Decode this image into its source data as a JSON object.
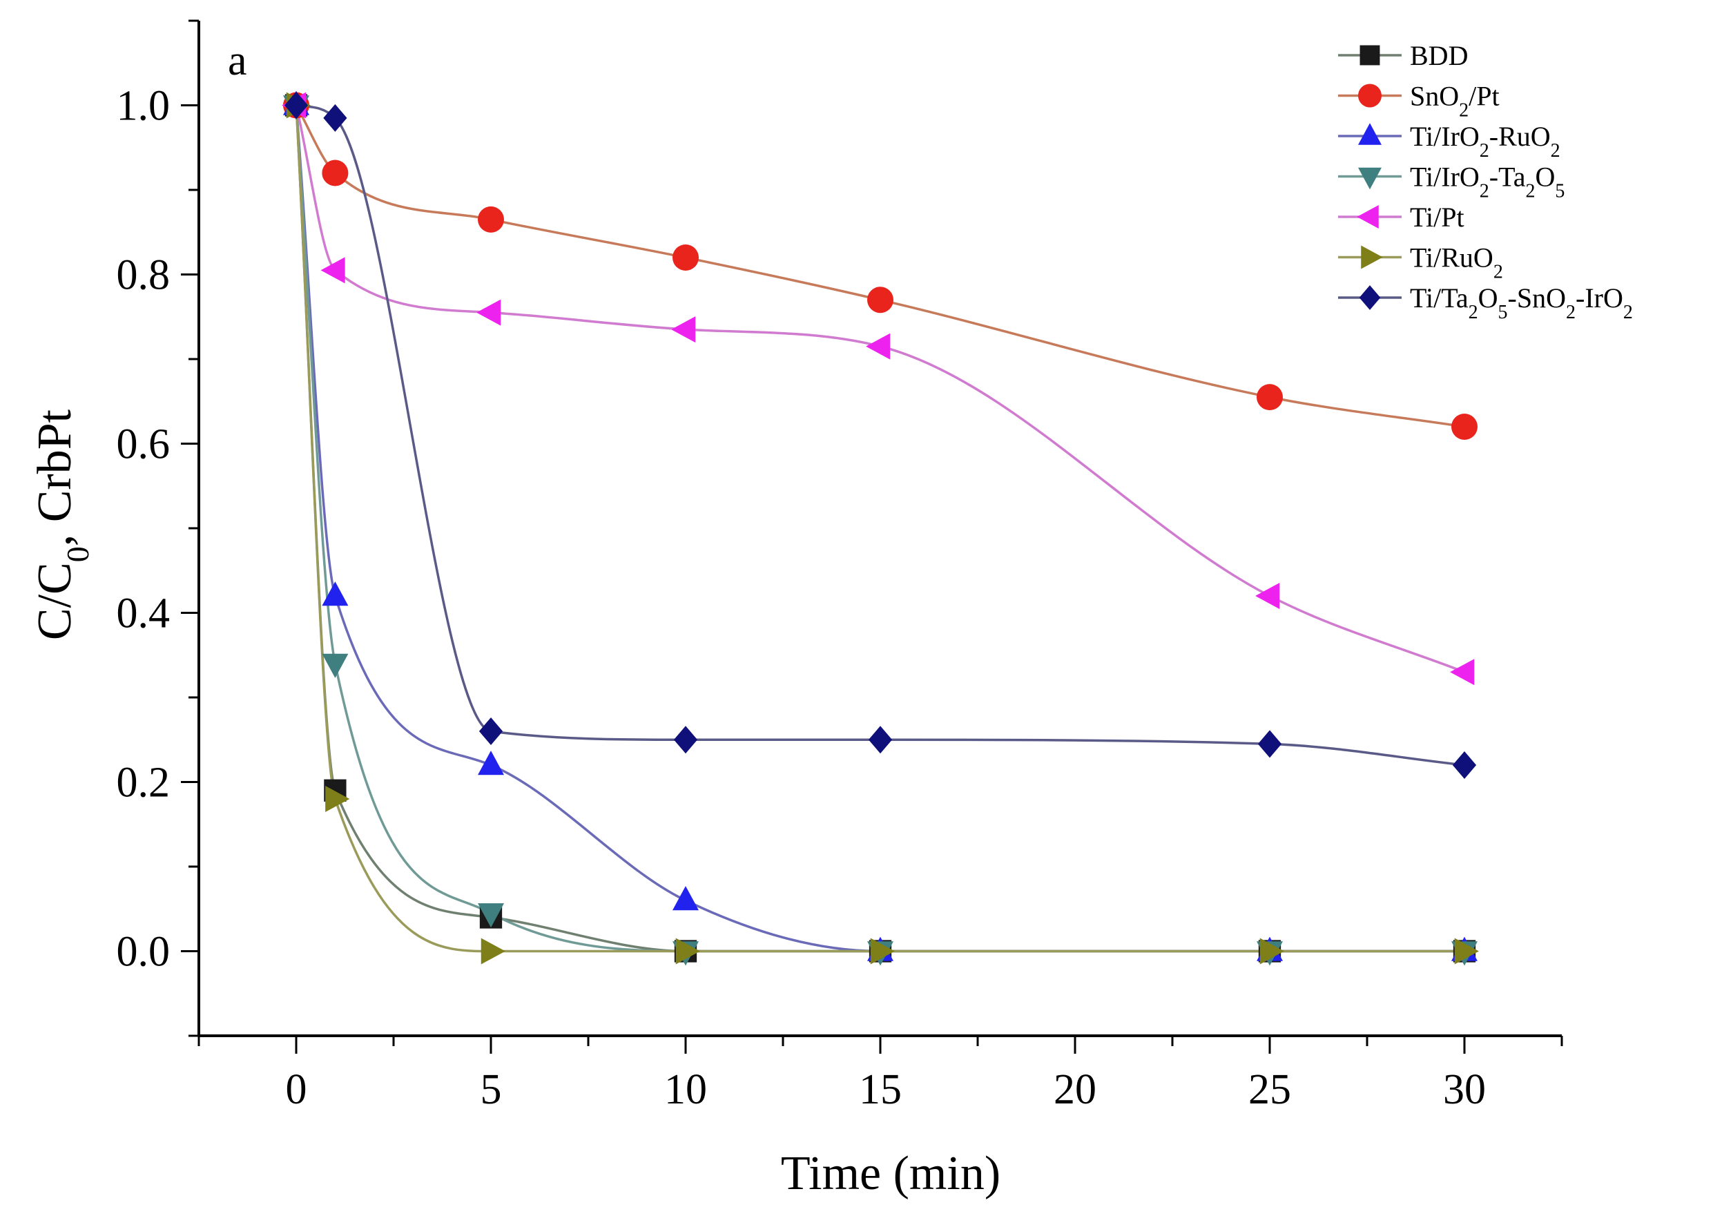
{
  "chart_data": {
    "type": "line",
    "panel_label": "a",
    "title": "",
    "xlabel": "Time (min)",
    "ylabel": {
      "main": "C/C",
      "sub": "0",
      "rest": ", CrbPt"
    },
    "xlim": [
      -2.5,
      32.5
    ],
    "ylim": [
      -0.1,
      1.1
    ],
    "x_ticks": [
      0,
      5,
      10,
      15,
      20,
      25,
      30
    ],
    "x_tick_labels": [
      "0",
      "5",
      "10",
      "15",
      "20",
      "25",
      "30"
    ],
    "y_ticks": [
      0.0,
      0.2,
      0.4,
      0.6,
      0.8,
      1.0
    ],
    "y_tick_labels": [
      "0.0",
      "0.2",
      "0.4",
      "0.6",
      "0.8",
      "1.0"
    ],
    "grid": false,
    "legend_position": "top-right",
    "series": [
      {
        "name": "BDD",
        "label_parts": [
          [
            "BDD",
            ""
          ]
        ],
        "marker": "square",
        "color": "#1a1a1a",
        "line_color": "#6f7f70",
        "x": [
          0,
          1,
          5,
          10,
          15,
          25,
          30
        ],
        "y": [
          1.0,
          0.19,
          0.04,
          0.0,
          0.0,
          0.0,
          0.0
        ]
      },
      {
        "name": "SnO2/Pt",
        "label_parts": [
          [
            "SnO",
            ""
          ],
          [
            "2",
            "sub"
          ],
          [
            "/Pt",
            ""
          ]
        ],
        "marker": "circle",
        "color": "#e8241c",
        "line_color": "#c77a5a",
        "x": [
          0,
          1,
          5,
          10,
          15,
          25,
          30
        ],
        "y": [
          1.0,
          0.92,
          0.865,
          0.82,
          0.77,
          0.655,
          0.62
        ]
      },
      {
        "name": "Ti/IrO2-RuO2",
        "label_parts": [
          [
            "Ti/IrO",
            ""
          ],
          [
            "2",
            "sub"
          ],
          [
            "-RuO",
            ""
          ],
          [
            "2",
            "sub"
          ]
        ],
        "marker": "triangle-up",
        "color": "#2222ee",
        "line_color": "#6a6ab8",
        "x": [
          0,
          1,
          5,
          10,
          15,
          25,
          30
        ],
        "y": [
          1.0,
          0.42,
          0.22,
          0.06,
          0.0,
          0.0,
          0.0
        ]
      },
      {
        "name": "Ti/IrO2-Ta2O5",
        "label_parts": [
          [
            "Ti/IrO",
            ""
          ],
          [
            "2",
            "sub"
          ],
          [
            "-Ta",
            ""
          ],
          [
            "2",
            "sub"
          ],
          [
            "O",
            ""
          ],
          [
            "5",
            "sub"
          ]
        ],
        "marker": "triangle-down",
        "color": "#3f7f7f",
        "line_color": "#6f9a96",
        "x": [
          0,
          1,
          5,
          10,
          15,
          25,
          30
        ],
        "y": [
          1.0,
          0.34,
          0.045,
          0.0,
          0.0,
          0.0,
          0.0
        ]
      },
      {
        "name": "Ti/Pt",
        "label_parts": [
          [
            "Ti/Pt",
            ""
          ]
        ],
        "marker": "triangle-left",
        "color": "#ee22ee",
        "line_color": "#d07ad0",
        "x": [
          0,
          1,
          5,
          10,
          15,
          25,
          30
        ],
        "y": [
          1.0,
          0.805,
          0.755,
          0.735,
          0.715,
          0.42,
          0.33
        ]
      },
      {
        "name": "Ti/RuO2",
        "label_parts": [
          [
            "Ti/RuO",
            ""
          ],
          [
            "2",
            "sub"
          ]
        ],
        "marker": "triangle-right",
        "color": "#7f7f1a",
        "line_color": "#9a9a5a",
        "x": [
          0,
          1,
          5,
          10,
          15,
          25,
          30
        ],
        "y": [
          1.0,
          0.18,
          0.0,
          0.0,
          0.0,
          0.0,
          0.0
        ]
      },
      {
        "name": "Ti/Ta2O5-SnO2-IrO2",
        "label_parts": [
          [
            "Ti/Ta",
            ""
          ],
          [
            "2",
            "sub"
          ],
          [
            "O",
            ""
          ],
          [
            "5",
            "sub"
          ],
          [
            "-SnO",
            ""
          ],
          [
            "2",
            "sub"
          ],
          [
            "-IrO",
            ""
          ],
          [
            "2",
            "sub"
          ]
        ],
        "marker": "diamond",
        "color": "#10107a",
        "line_color": "#5a5a88",
        "x": [
          0,
          1,
          5,
          10,
          15,
          25,
          30
        ],
        "y": [
          1.0,
          0.985,
          0.26,
          0.25,
          0.25,
          0.245,
          0.22
        ]
      }
    ]
  }
}
